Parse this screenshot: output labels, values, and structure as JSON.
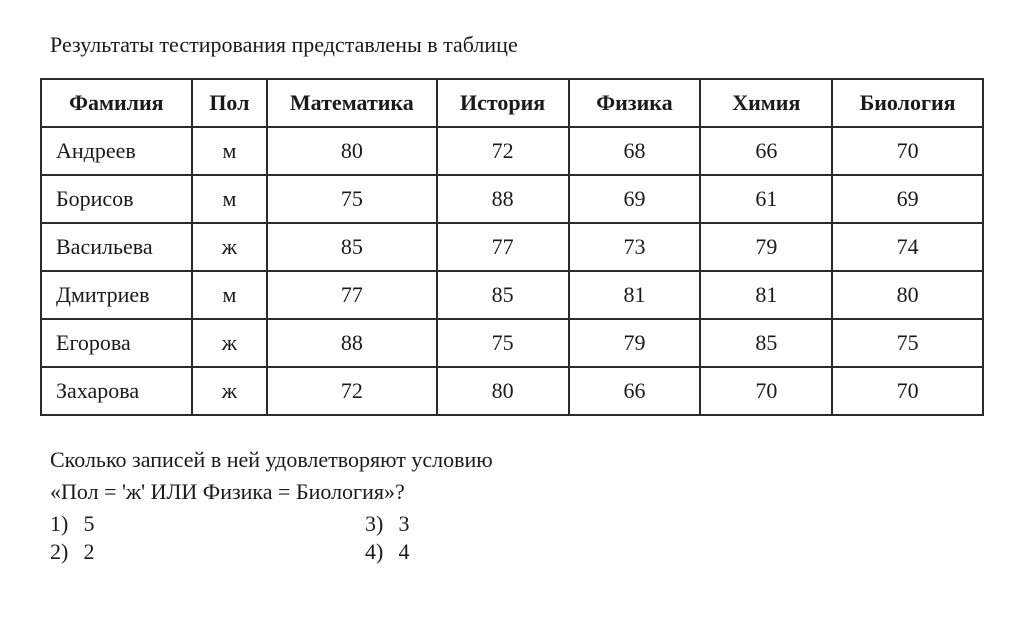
{
  "intro_text": "Результаты тестирования представлены в таблице",
  "table": {
    "columns": [
      "Фамилия",
      "Пол",
      "Математика",
      "История",
      "Физика",
      "Химия",
      "Биология"
    ],
    "col_widths_pct": [
      16,
      8,
      18,
      14,
      14,
      14,
      16
    ],
    "header_fontweight": "bold",
    "rows": [
      [
        "Андреев",
        "м",
        "80",
        "72",
        "68",
        "66",
        "70"
      ],
      [
        "Борисов",
        "м",
        "75",
        "88",
        "69",
        "61",
        "69"
      ],
      [
        "Васильева",
        "ж",
        "85",
        "77",
        "73",
        "79",
        "74"
      ],
      [
        "Дмитриев",
        "м",
        "77",
        "85",
        "81",
        "81",
        "80"
      ],
      [
        "Егорова",
        "ж",
        "88",
        "75",
        "79",
        "85",
        "75"
      ],
      [
        "Захарова",
        "ж",
        "72",
        "80",
        "66",
        "70",
        "70"
      ]
    ],
    "border_color": "#2a2a2a",
    "background_color": "#ffffff",
    "font_size_pt": 22
  },
  "question_line1": "Сколько записей в ней удовлетворяют условию",
  "question_line2": "«Пол = 'ж' ИЛИ Физика = Биология»?",
  "answers": [
    {
      "label": "1)",
      "value": "5"
    },
    {
      "label": "2)",
      "value": "2"
    },
    {
      "label": "3)",
      "value": "3"
    },
    {
      "label": "4)",
      "value": "4"
    }
  ],
  "text_color": "#1a1a1a",
  "body_font": "Times New Roman"
}
